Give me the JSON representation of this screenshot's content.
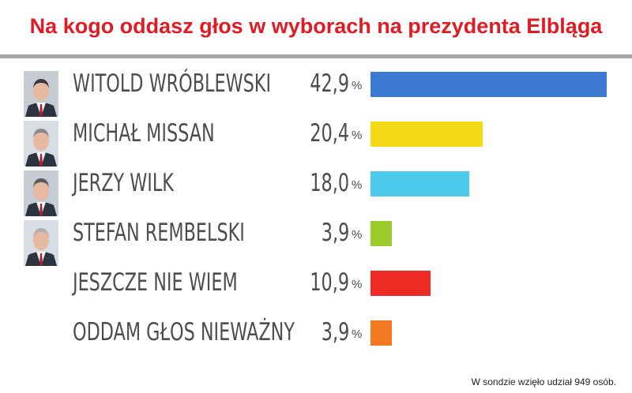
{
  "chart_data": {
    "type": "bar",
    "orientation": "horizontal",
    "title": "Na kogo oddasz głos w wyborach na prezydenta Elbląga",
    "categories": [
      "WITOLD WRÓBLEWSKI",
      "MICHAŁ MISSAN",
      "JERZY WILK",
      "STEFAN REMBELSKI",
      "JESZCZE NIE WIEM",
      "ODDAM GŁOS NIEWAŻNY"
    ],
    "values": [
      42.9,
      20.4,
      18.0,
      3.9,
      10.9,
      3.9
    ],
    "value_labels": [
      "42,9",
      "20,4",
      "18,0",
      "3,9",
      "10,9",
      "3,9"
    ],
    "unit": "%",
    "colors": [
      "#3c7ad4",
      "#f5da18",
      "#4ecbec",
      "#9ccb2c",
      "#ed2a24",
      "#f47920"
    ],
    "xlim": [
      0,
      42.9
    ],
    "grid": false,
    "legend": "none"
  },
  "photos": [
    "portrait-icon",
    "portrait-icon",
    "portrait-icon",
    "portrait-icon"
  ],
  "footnote": "W sondzie wzięło udział 949 osób."
}
